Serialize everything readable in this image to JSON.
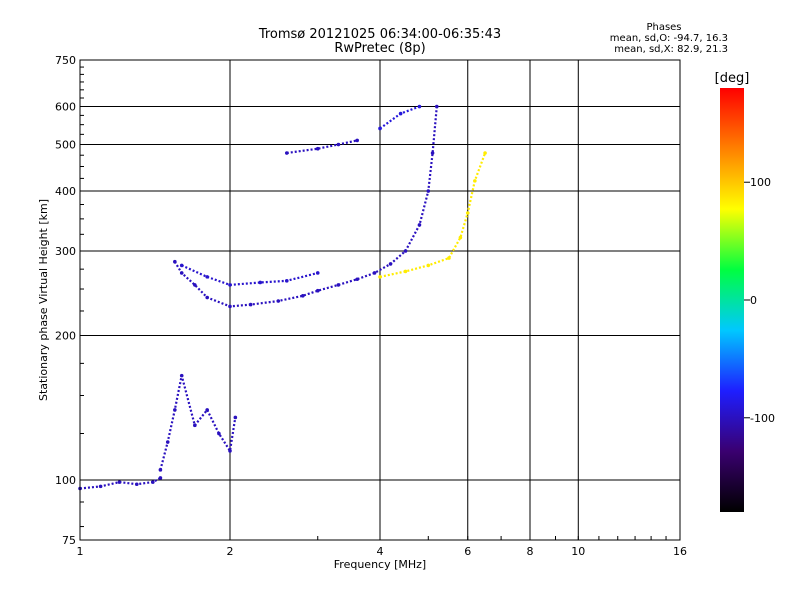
{
  "header": {
    "title_line1": "Tromsø 20121025 06:34:00-06:35:43",
    "title_line2": "RwPretec (8p)",
    "phase_title": "Phases",
    "phase_o": "mean, sd,O: -94.7, 16.3",
    "phase_x": "mean, sd,X:  82.9, 21.3"
  },
  "chart_data": {
    "type": "scatter",
    "title": "Tromsø 20121025 06:34:00-06:35:43",
    "subtitle": "RwPretec (8p)",
    "xlabel": "Frequency [MHz]",
    "ylabel": "Stationary phase Virtual Height [km]",
    "x_scale": "log",
    "y_scale": "log",
    "xlim": [
      1,
      16
    ],
    "ylim": [
      75,
      750
    ],
    "x_ticks": [
      "1",
      "2",
      "4",
      "6",
      "8",
      "10",
      "16"
    ],
    "x_tick_values": [
      1,
      2,
      4,
      6,
      8,
      10,
      16
    ],
    "y_ticks": [
      "75",
      "100",
      "200",
      "300",
      "400",
      "500",
      "600",
      "750"
    ],
    "y_tick_values": [
      75,
      100,
      200,
      300,
      400,
      500,
      600,
      750
    ],
    "grid": true,
    "colorbar": {
      "label": "[deg]",
      "ticks": [
        "100",
        "0",
        "-100"
      ],
      "tick_values": [
        100,
        0,
        -100
      ],
      "range": [
        -180,
        180
      ],
      "colors": [
        "#000000",
        "#3a0070",
        "#1e1eff",
        "#00c8ff",
        "#00ff40",
        "#ffff00",
        "#ff8000",
        "#ff0000"
      ]
    },
    "series": [
      {
        "traces": [
          {
            "x": [
              1.0,
              1.1,
              1.2,
              1.3,
              1.4,
              1.45
            ],
            "y": [
              96,
              97,
              99,
              98,
              99,
              101
            ],
            "phase": -100
          },
          {
            "x": [
              1.45,
              1.5,
              1.55,
              1.6,
              1.7,
              1.8,
              1.9,
              2.0,
              2.05
            ],
            "y": [
              105,
              120,
              140,
              165,
              130,
              140,
              125,
              115,
              135
            ],
            "phase": -100
          },
          {
            "x": [
              1.55,
              1.6,
              1.7,
              1.8,
              2.0,
              2.2,
              2.5,
              2.8,
              3.0,
              3.3,
              3.6,
              3.9,
              4.2,
              4.5,
              4.8,
              5.0,
              5.1,
              5.2
            ],
            "y": [
              285,
              270,
              255,
              240,
              230,
              232,
              236,
              242,
              248,
              255,
              262,
              270,
              282,
              300,
              340,
              400,
              480,
              600
            ],
            "phase": -100
          },
          {
            "x": [
              1.6,
              1.8,
              2.0,
              2.3,
              2.6,
              3.0
            ],
            "y": [
              280,
              265,
              255,
              258,
              260,
              270
            ],
            "phase": -95
          },
          {
            "x": [
              4.0,
              4.5,
              5.0,
              5.5,
              5.8,
              6.0,
              6.2,
              6.5
            ],
            "y": [
              265,
              272,
              280,
              290,
              320,
              360,
              420,
              480
            ],
            "phase": 85
          },
          {
            "x": [
              2.6,
              3.0,
              3.3,
              3.6
            ],
            "y": [
              480,
              490,
              500,
              510
            ],
            "phase": -100
          },
          {
            "x": [
              4.0,
              4.4,
              4.8
            ],
            "y": [
              540,
              580,
              600
            ],
            "phase": -90
          }
        ]
      }
    ]
  }
}
